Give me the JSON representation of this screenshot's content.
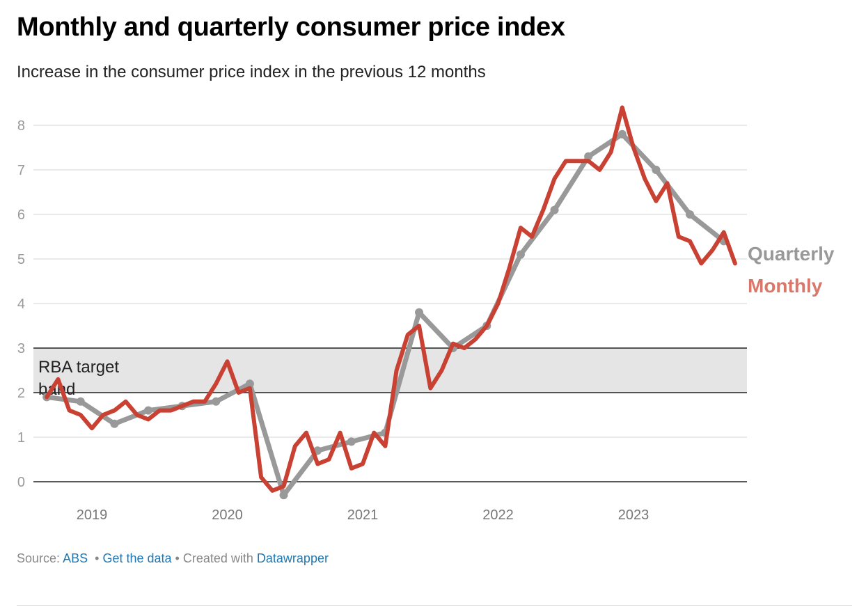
{
  "title": "Monthly and quarterly consumer price index",
  "subtitle": "Increase in the consumer price index in the previous 12 months",
  "footer": {
    "source_label": "Source:",
    "source_link": "ABS",
    "get_data": "Get the data",
    "created_with": "• Created with",
    "datawrapper": "Datawrapper",
    "sep": "•"
  },
  "chart_data": {
    "type": "line",
    "title": "Monthly and quarterly consumer price index",
    "subtitle": "Increase in the consumer price index in the previous 12 months",
    "ylim": [
      -0.4,
      8.5
    ],
    "yticks": [
      "0",
      "1",
      "2",
      "3",
      "4",
      "5",
      "6",
      "7",
      "8"
    ],
    "xticks": [
      "2019",
      "2020",
      "2021",
      "2022",
      "2023"
    ],
    "grid": true,
    "legend_placement": "right, at line ends",
    "band": {
      "label": "RBA target band",
      "from": 2,
      "to": 3,
      "color": "#e5e5e5"
    },
    "series": [
      {
        "name": "Quarterly",
        "color": "#999999",
        "label_color": "#999999",
        "x": [
          "2018-09",
          "2018-12",
          "2019-03",
          "2019-06",
          "2019-09",
          "2019-12",
          "2020-03",
          "2020-06",
          "2020-09",
          "2020-12",
          "2021-03",
          "2021-06",
          "2021-09",
          "2021-12",
          "2022-03",
          "2022-06",
          "2022-09",
          "2022-12",
          "2023-03",
          "2023-06",
          "2023-09"
        ],
        "values": [
          1.9,
          1.8,
          1.3,
          1.6,
          1.7,
          1.8,
          2.2,
          -0.3,
          0.7,
          0.9,
          1.1,
          3.8,
          3.0,
          3.5,
          5.1,
          6.1,
          7.3,
          7.8,
          7.0,
          6.0,
          5.4
        ]
      },
      {
        "name": "Monthly",
        "color": "#c84132",
        "label_color": "#d9776b",
        "x": [
          "2018-09",
          "2018-10",
          "2018-11",
          "2018-12",
          "2019-01",
          "2019-02",
          "2019-03",
          "2019-04",
          "2019-05",
          "2019-06",
          "2019-07",
          "2019-08",
          "2019-09",
          "2019-10",
          "2019-11",
          "2019-12",
          "2020-01",
          "2020-02",
          "2020-03",
          "2020-04",
          "2020-05",
          "2020-06",
          "2020-07",
          "2020-08",
          "2020-09",
          "2020-10",
          "2020-11",
          "2020-12",
          "2021-01",
          "2021-02",
          "2021-03",
          "2021-04",
          "2021-05",
          "2021-06",
          "2021-07",
          "2021-08",
          "2021-09",
          "2021-10",
          "2021-11",
          "2021-12",
          "2022-01",
          "2022-02",
          "2022-03",
          "2022-04",
          "2022-05",
          "2022-06",
          "2022-07",
          "2022-08",
          "2022-09",
          "2022-10",
          "2022-11",
          "2022-12",
          "2023-01",
          "2023-02",
          "2023-03",
          "2023-04",
          "2023-05",
          "2023-06",
          "2023-07",
          "2023-08",
          "2023-09",
          "2023-10"
        ],
        "values": [
          1.9,
          2.3,
          1.6,
          1.5,
          1.2,
          1.5,
          1.6,
          1.8,
          1.5,
          1.4,
          1.6,
          1.6,
          1.7,
          1.8,
          1.8,
          2.2,
          2.7,
          2.0,
          2.1,
          0.1,
          -0.2,
          -0.1,
          0.8,
          1.1,
          0.4,
          0.5,
          1.1,
          0.3,
          0.4,
          1.1,
          0.8,
          2.5,
          3.3,
          3.5,
          2.1,
          2.5,
          3.1,
          3.0,
          3.2,
          3.5,
          4.0,
          4.8,
          5.7,
          5.5,
          6.1,
          6.8,
          7.2,
          7.2,
          7.2,
          7.0,
          7.4,
          8.4,
          7.5,
          6.8,
          6.3,
          6.7,
          5.5,
          5.4,
          4.9,
          5.2,
          5.6,
          4.9
        ]
      }
    ]
  }
}
